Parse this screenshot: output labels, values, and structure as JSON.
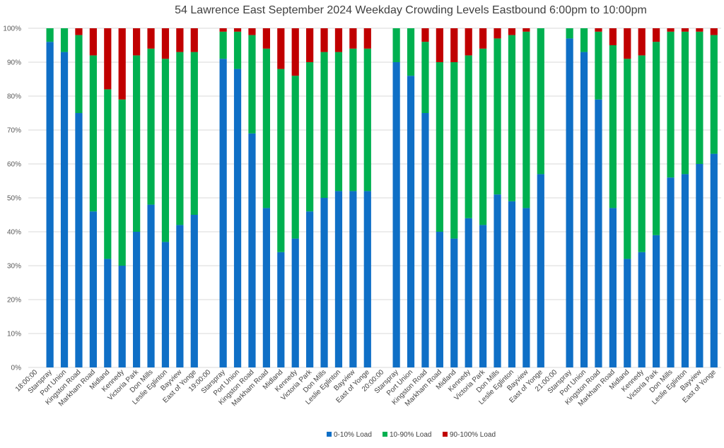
{
  "chart_data": {
    "type": "bar",
    "stacked": true,
    "percent": true,
    "title": "54 Lawrence East September 2024  Weekday Crowding Levels Eastbound 6:00pm to 10:00pm",
    "xlabel": "",
    "ylabel": "",
    "ylim": [
      0,
      100
    ],
    "yticks": [
      "0%",
      "10%",
      "20%",
      "30%",
      "40%",
      "50%",
      "60%",
      "70%",
      "80%",
      "90%",
      "100%"
    ],
    "grid": true,
    "legend_position": "bottom",
    "colors": {
      "0-10% Load": "#0f6fc6",
      "10-90% Load": "#00b050",
      "90-100% Load": "#c00000"
    },
    "categories": [
      "18:00:00",
      "Starspray",
      "Port Union",
      "Kingston Road",
      "Markham Road",
      "Midland",
      "Kennedy",
      "Victoria Park",
      "Don Mills",
      "Leslie Eglinton",
      "Bayview",
      "East of Yonge",
      "19:00:00",
      "Starspray",
      "Port Union",
      "Kingston Road",
      "Markham Road",
      "Midland",
      "Kennedy",
      "Victoria Park",
      "Don Mills",
      "Leslie Eglinton",
      "Bayview",
      "East of Yonge",
      "20:00:00",
      "Starspray",
      "Port Union",
      "Kingston Road",
      "Markham Road",
      "Midland",
      "Kennedy",
      "Victoria Park",
      "Don Mills",
      "Leslie Eglinton",
      "Bayview",
      "East of Yonge",
      "21:00:00",
      "Starspray",
      "Port Union",
      "Kingston Road",
      "Markham Road",
      "Midland",
      "Kennedy",
      "Victoria Park",
      "Don Mills",
      "Leslie Eglinton",
      "Bayview",
      "East of Yonge"
    ],
    "series": [
      {
        "name": "0-10% Load",
        "values": [
          null,
          96,
          93,
          75,
          46,
          32,
          30,
          40,
          48,
          37,
          42,
          45,
          null,
          91,
          88,
          69,
          47,
          34,
          38,
          46,
          50,
          52,
          52,
          52,
          null,
          90,
          86,
          75,
          40,
          38,
          44,
          42,
          51,
          49,
          47,
          57,
          null,
          97,
          93,
          79,
          47,
          32,
          34,
          39,
          56,
          57,
          60,
          63
        ]
      },
      {
        "name": "10-90% Load",
        "values": [
          null,
          4,
          7,
          23,
          46,
          50,
          49,
          52,
          46,
          54,
          51,
          48,
          null,
          8,
          11,
          29,
          47,
          54,
          48,
          44,
          43,
          41,
          42,
          42,
          null,
          10,
          14,
          21,
          50,
          52,
          48,
          52,
          46,
          49,
          52,
          43,
          null,
          3,
          7,
          20,
          48,
          59,
          58,
          57,
          43,
          42,
          39,
          35
        ]
      },
      {
        "name": "90-100% Load",
        "values": [
          null,
          0,
          0,
          2,
          8,
          18,
          21,
          8,
          6,
          9,
          7,
          7,
          null,
          1,
          1,
          2,
          6,
          12,
          14,
          10,
          7,
          7,
          6,
          6,
          null,
          0,
          0,
          4,
          10,
          10,
          8,
          6,
          3,
          2,
          1,
          0,
          null,
          0,
          0,
          1,
          5,
          9,
          8,
          4,
          1,
          1,
          1,
          2
        ]
      }
    ]
  }
}
